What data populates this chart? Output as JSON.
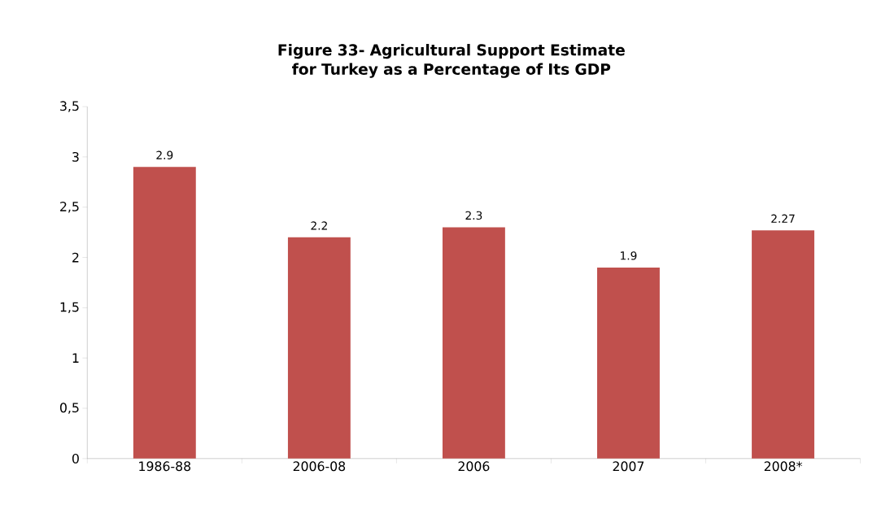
{
  "chart_data": {
    "type": "bar",
    "title": "Figure 33- Agricultural Support Estimate for Turkey as a Percentage of Its GDP",
    "categories": [
      "1986-88",
      "2006-08",
      "2006",
      "2007",
      "2008*"
    ],
    "values": [
      2.9,
      2.2,
      2.3,
      1.9,
      2.27
    ],
    "color": "#c0504d",
    "data_labels": true,
    "ylim": [
      0,
      3.5
    ],
    "yticks": [
      0,
      {
        "value": 0.5,
        "label": "0,5"
      },
      1,
      {
        "value": 1.5,
        "label": "1,5"
      },
      2,
      {
        "value": 2.5,
        "label": "2,5"
      },
      3,
      {
        "value": 3.5,
        "label": "3,5"
      }
    ],
    "grid": false
  }
}
